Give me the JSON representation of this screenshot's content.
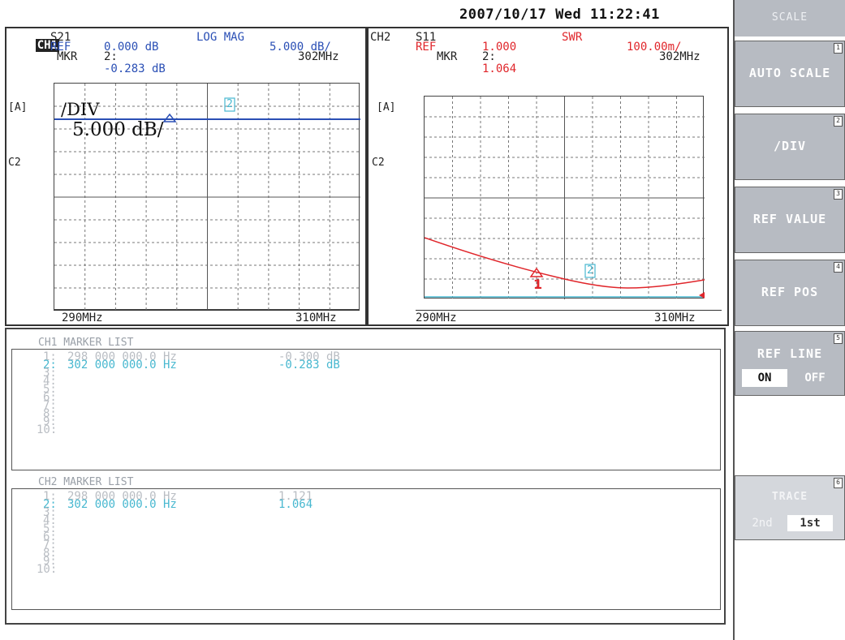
{
  "datetime": "2007/10/17 Wed 11:22:41",
  "ch1": {
    "badge": "CH1",
    "param": "S21",
    "ref_label": "REF",
    "ref_value": "0.000 dB",
    "format": "LOG MAG",
    "scale": "5.000 dB/",
    "mkr_label": "MKR",
    "mkr_num": "2:",
    "mkr_freq": "302MHz",
    "mkr_value": "-0.283 dB",
    "ref_pos_label": "[A]",
    "c2_label": "C2",
    "start_freq": "290MHz",
    "stop_freq": "310MHz",
    "overlay_div": "/DIV",
    "overlay_value": "5.000 dB/",
    "marker_tag": "2"
  },
  "ch2": {
    "label": "CH2",
    "param": "S11",
    "ref_label": "REF",
    "ref_value": "1.000",
    "format": "SWR",
    "scale": "100.00m/",
    "mkr_label": "MKR",
    "mkr_num": "2:",
    "mkr_freq": "302MHz",
    "mkr_value": "1.064",
    "ref_pos_label": "[A]",
    "c2_label": "C2",
    "start_freq": "290MHz",
    "stop_freq": "310MHz",
    "marker1_tag": "1",
    "marker2_tag": "2"
  },
  "ch1_list": {
    "title": "CH1  MARKER LIST",
    "rows": [
      {
        "num": "1:",
        "freq": "298 000 000.0 Hz",
        "value": "-0.300 dB"
      },
      {
        "num": "2:",
        "freq": "302 000 000.0 Hz",
        "value": "-0.283 dB"
      },
      {
        "num": "3:",
        "freq": "",
        "value": ""
      },
      {
        "num": "4:",
        "freq": "",
        "value": ""
      },
      {
        "num": "5:",
        "freq": "",
        "value": ""
      },
      {
        "num": "6:",
        "freq": "",
        "value": ""
      },
      {
        "num": "7:",
        "freq": "",
        "value": ""
      },
      {
        "num": "8:",
        "freq": "",
        "value": ""
      },
      {
        "num": "9:",
        "freq": "",
        "value": ""
      },
      {
        "num": "10:",
        "freq": "",
        "value": ""
      }
    ]
  },
  "ch2_list": {
    "title": "CH2  MARKER LIST",
    "rows": [
      {
        "num": "1:",
        "freq": "298 000 000.0 Hz",
        "value": "1.121"
      },
      {
        "num": "2:",
        "freq": "302 000 000.0 Hz",
        "value": "1.064"
      },
      {
        "num": "3:",
        "freq": "",
        "value": ""
      },
      {
        "num": "4:",
        "freq": "",
        "value": ""
      },
      {
        "num": "5:",
        "freq": "",
        "value": ""
      },
      {
        "num": "6:",
        "freq": "",
        "value": ""
      },
      {
        "num": "7:",
        "freq": "",
        "value": ""
      },
      {
        "num": "8:",
        "freq": "",
        "value": ""
      },
      {
        "num": "9:",
        "freq": "",
        "value": ""
      },
      {
        "num": "10:",
        "freq": "",
        "value": ""
      }
    ]
  },
  "softkeys": {
    "menu_title": "SCALE",
    "auto_scale": "AUTO SCALE",
    "div": "/DIV",
    "ref_value": "REF VALUE",
    "ref_pos": "REF POS",
    "ref_line": "REF LINE",
    "ref_line_on": "ON",
    "ref_line_off": "OFF",
    "trace": "TRACE",
    "trace_2nd": "2nd",
    "trace_1st": "1st",
    "key_marks": [
      "1",
      "2",
      "3",
      "4",
      "5",
      "6"
    ]
  },
  "colors": {
    "ch1_trace": "#2a4fb5",
    "ch2_trace": "#e0262b",
    "marker2": "#48b8d0",
    "softkey_bg": "#b7bbc2"
  }
}
